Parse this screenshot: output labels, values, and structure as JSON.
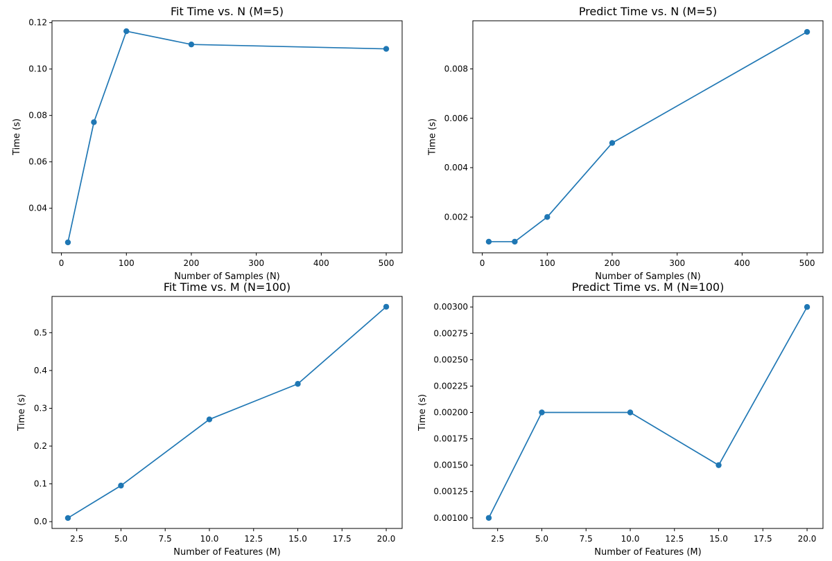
{
  "chart_data": [
    {
      "type": "line",
      "title": "Fit Time vs. N (M=5)",
      "xlabel": "Number of Samples (N)",
      "ylabel": "Time (s)",
      "x": [
        10,
        50,
        100,
        200,
        500
      ],
      "y": [
        0.0253,
        0.0771,
        0.1163,
        0.1106,
        0.1087
      ],
      "xlim": [
        -14.5,
        524.5
      ],
      "ylim": [
        0.0208,
        0.1208
      ],
      "xticks": [
        0,
        100,
        200,
        300,
        400,
        500
      ],
      "xtick_labels": [
        "0",
        "100",
        "200",
        "300",
        "400",
        "500"
      ],
      "yticks": [
        0.04,
        0.06,
        0.08,
        0.1,
        0.12
      ],
      "ytick_labels": [
        "0.04",
        "0.06",
        "0.08",
        "0.10",
        "0.12"
      ],
      "color": "#1f77b4",
      "marker": "circle",
      "grid": false
    },
    {
      "type": "line",
      "title": "Predict Time vs. N (M=5)",
      "xlabel": "Number of Samples (N)",
      "ylabel": "Time (s)",
      "x": [
        10,
        50,
        100,
        200,
        500
      ],
      "y": [
        0.001,
        0.001,
        0.002,
        0.005,
        0.0095
      ],
      "xlim": [
        -14.5,
        524.5
      ],
      "ylim": [
        0.00055,
        0.00995
      ],
      "xticks": [
        0,
        100,
        200,
        300,
        400,
        500
      ],
      "xtick_labels": [
        "0",
        "100",
        "200",
        "300",
        "400",
        "500"
      ],
      "yticks": [
        0.002,
        0.004,
        0.006,
        0.008
      ],
      "ytick_labels": [
        "0.002",
        "0.004",
        "0.006",
        "0.008"
      ],
      "color": "#1f77b4",
      "marker": "circle",
      "grid": false
    },
    {
      "type": "line",
      "title": "Fit Time vs. M (N=100)",
      "xlabel": "Number of Features (M)",
      "ylabel": "Time (s)",
      "x": [
        2,
        5,
        10,
        15,
        20
      ],
      "y": [
        0.0096,
        0.0954,
        0.2706,
        0.3646,
        0.5687
      ],
      "xlim": [
        1.1,
        20.9
      ],
      "ylim": [
        -0.018,
        0.596
      ],
      "xticks": [
        2.5,
        5.0,
        7.5,
        10.0,
        12.5,
        15.0,
        17.5,
        20.0
      ],
      "xtick_labels": [
        "2.5",
        "5.0",
        "7.5",
        "10.0",
        "12.5",
        "15.0",
        "17.5",
        "20.0"
      ],
      "yticks": [
        0.0,
        0.1,
        0.2,
        0.3,
        0.4,
        0.5
      ],
      "ytick_labels": [
        "0.0",
        "0.1",
        "0.2",
        "0.3",
        "0.4",
        "0.5"
      ],
      "color": "#1f77b4",
      "marker": "circle",
      "grid": false
    },
    {
      "type": "line",
      "title": "Predict Time vs. M (N=100)",
      "xlabel": "Number of Features (M)",
      "ylabel": "Time (s)",
      "x": [
        2,
        5,
        10,
        15,
        20
      ],
      "y": [
        0.001,
        0.002,
        0.002,
        0.0015,
        0.003
      ],
      "xlim": [
        1.1,
        20.9
      ],
      "ylim": [
        0.0009,
        0.0031
      ],
      "xticks": [
        2.5,
        5.0,
        7.5,
        10.0,
        12.5,
        15.0,
        17.5,
        20.0
      ],
      "xtick_labels": [
        "2.5",
        "5.0",
        "7.5",
        "10.0",
        "12.5",
        "15.0",
        "17.5",
        "20.0"
      ],
      "yticks": [
        0.001,
        0.00125,
        0.0015,
        0.00175,
        0.002,
        0.00225,
        0.0025,
        0.00275,
        0.003
      ],
      "ytick_labels": [
        "0.00100",
        "0.00125",
        "0.00150",
        "0.00175",
        "0.00200",
        "0.00225",
        "0.00250",
        "0.00275",
        "0.00300"
      ],
      "color": "#1f77b4",
      "marker": "circle",
      "grid": false
    }
  ]
}
